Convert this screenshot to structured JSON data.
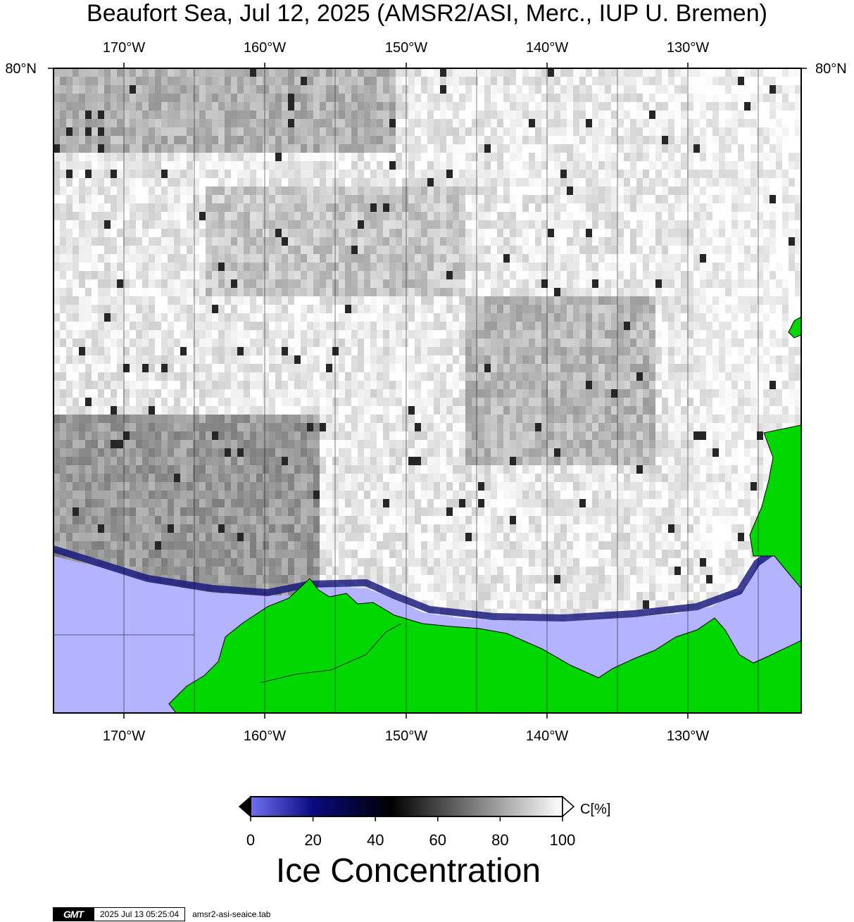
{
  "title": "Beaufort Sea, Jul 12, 2025 (AMSR2/ASI, Merc., IUP U. Bremen)",
  "map": {
    "lon_labels": [
      "170°W",
      "160°W",
      "150°W",
      "140°W",
      "130°W"
    ],
    "lat_label_left": "80°N",
    "lat_label_right": "80°N",
    "colors": {
      "land": "#00d700",
      "open_water": "#b3b3ff",
      "grid": "#000000"
    }
  },
  "colorbar": {
    "unit_label": "C[%]",
    "ticks": [
      "0",
      "20",
      "40",
      "60",
      "80",
      "100"
    ],
    "title": "Ice Concentration",
    "stops": [
      {
        "value": 0,
        "color": "#7070f0"
      },
      {
        "value": 20,
        "color": "#0a0a80"
      },
      {
        "value": 45,
        "color": "#000000"
      },
      {
        "value": 100,
        "color": "#ffffff"
      }
    ]
  },
  "footer": {
    "logo": "GMT",
    "timestamp": "2025 Jul 13 05:25:04",
    "filename": "amsr2-asi-seaice.tab"
  }
}
